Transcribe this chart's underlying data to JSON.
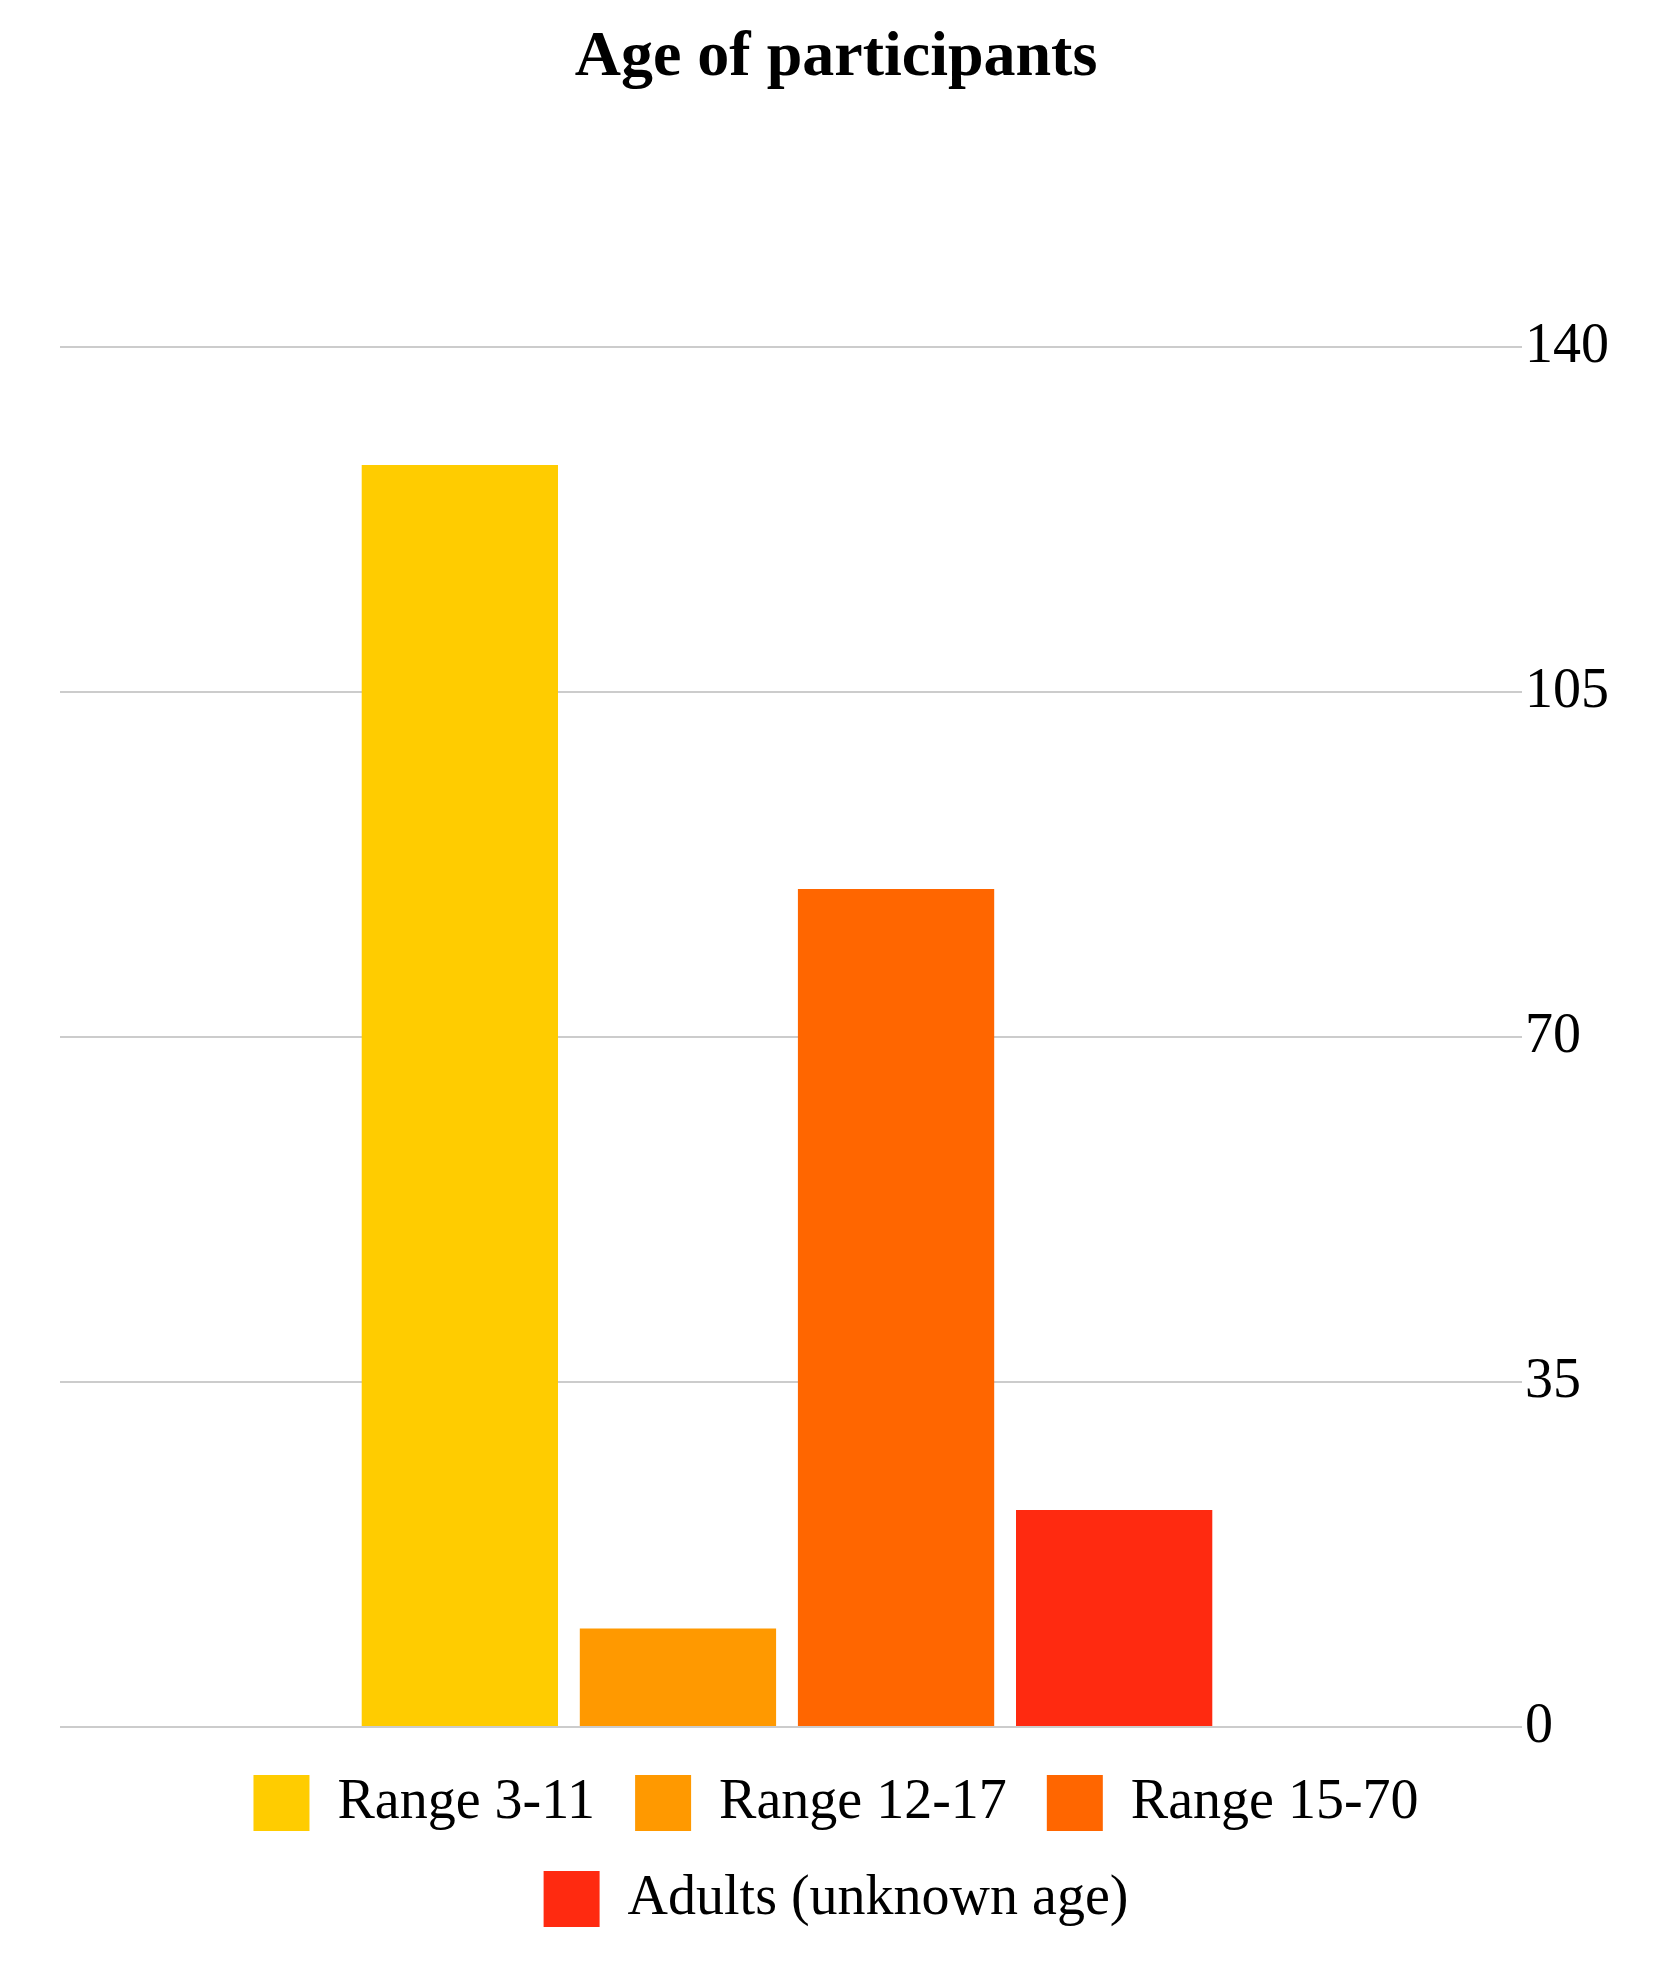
{
  "chart_data": {
    "type": "bar",
    "title": "Age of participants",
    "categories": [
      null
    ],
    "series": [
      {
        "name": "Range 3-11",
        "color": "#ffcc00",
        "values": [
          128
        ]
      },
      {
        "name": "Range 12-17",
        "color": "#ff9900",
        "values": [
          10
        ]
      },
      {
        "name": "Range 15-70",
        "color": "#ff6600",
        "values": [
          85
        ]
      },
      {
        "name": "Adults (unknown age)",
        "color": "#ff2a10",
        "values": [
          22
        ]
      }
    ],
    "ylim": [
      0,
      140
    ],
    "yticks": [
      0,
      35,
      70,
      105,
      140
    ],
    "grid": "y",
    "legend": "bottom",
    "tick_labels": "y"
  }
}
